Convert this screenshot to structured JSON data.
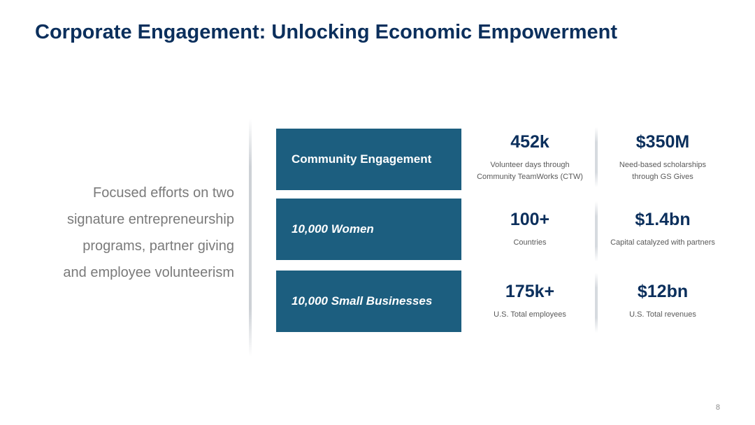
{
  "title": "Corporate Engagement: Unlocking Economic Empowerment",
  "intro_lines": [
    "Focused efforts on two",
    "signature entrepreneurship",
    "programs, partner giving",
    "and employee volunteerism"
  ],
  "programs": [
    {
      "label": "Community Engagement",
      "stats": [
        {
          "value": "452k",
          "desc": [
            "Volunteer days through",
            "Community TeamWorks (CTW)"
          ]
        },
        {
          "value": "$350M",
          "desc": [
            "Need-based scholarships",
            "through GS Gives"
          ]
        }
      ]
    },
    {
      "label": "10,000 Women",
      "stats": [
        {
          "value": "100+",
          "desc": [
            "Countries"
          ]
        },
        {
          "value": "$1.4bn",
          "desc": [
            "Capital catalyzed with partners"
          ]
        }
      ]
    },
    {
      "label": "10,000 Small Businesses",
      "stats": [
        {
          "value": "175k+",
          "desc": [
            "U.S. Total employees"
          ]
        },
        {
          "value": "$12bn",
          "desc": [
            "U.S. Total revenues"
          ]
        }
      ]
    }
  ],
  "page_number": "8"
}
